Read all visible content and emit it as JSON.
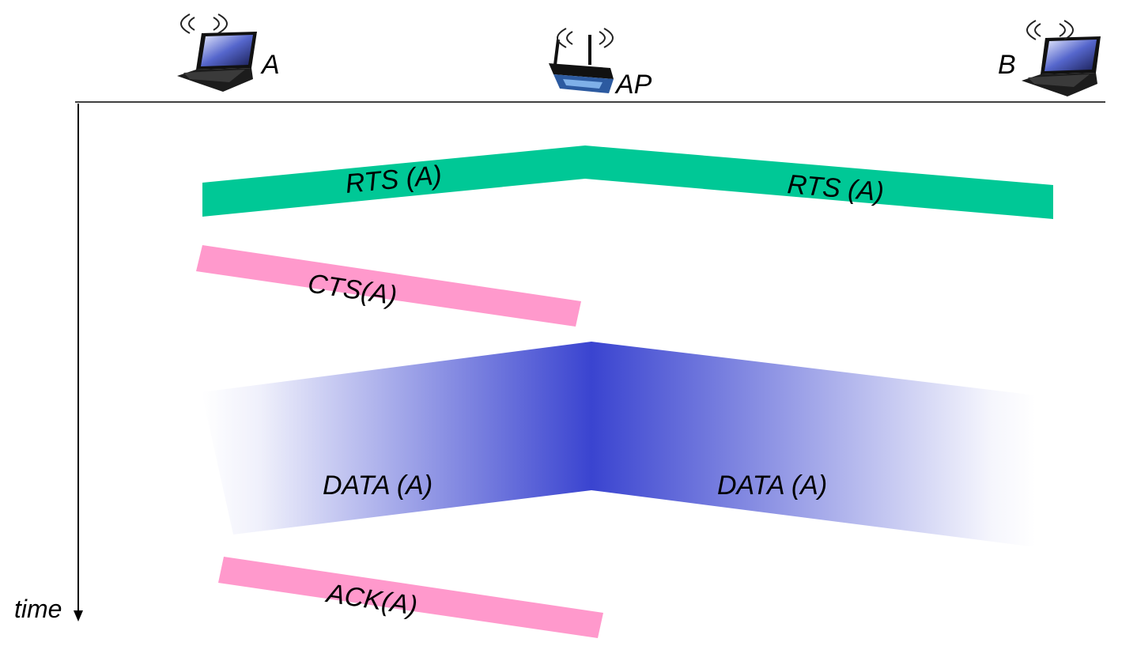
{
  "nodes": {
    "a": {
      "label": "A"
    },
    "ap": {
      "label": "AP"
    },
    "b": {
      "label": "B"
    }
  },
  "time_label": "time",
  "messages": {
    "rts_a_to_ap": "RTS (A)",
    "rts_ap_to_b": "RTS (A)",
    "cts": "CTS(A)",
    "data_a_to_ap": "DATA (A)",
    "data_ap_to_b": "DATA (A)",
    "ack": "ACK(A)"
  },
  "colors": {
    "rts": "#00c896",
    "cts_ack": "#ff99cc",
    "data": "#3a44d0",
    "line": "#000000"
  }
}
